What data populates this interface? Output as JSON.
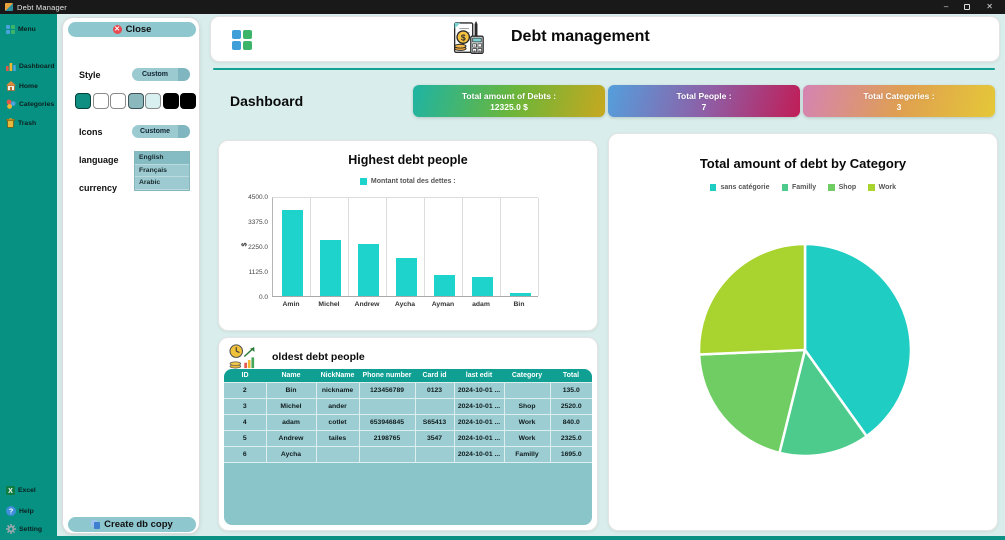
{
  "window": {
    "title": "Debt Manager",
    "controls": {
      "minimize": "–",
      "close": "✕"
    }
  },
  "sidebar": {
    "items": [
      {
        "label": "Menu",
        "icon": "grid-icon"
      },
      {
        "label": "Dashboard",
        "icon": "dashboard-icon"
      },
      {
        "label": "Home",
        "icon": "home-icon"
      },
      {
        "label": "Categories",
        "icon": "categories-icon"
      },
      {
        "label": "Trash",
        "icon": "trash-icon"
      }
    ],
    "footer_items": [
      {
        "label": "Excel",
        "icon": "excel-icon"
      },
      {
        "label": "Help",
        "icon": "help-icon"
      },
      {
        "label": "Setting",
        "icon": "gear-icon"
      }
    ]
  },
  "settings_panel": {
    "close_label": "Close",
    "style_label": "Style",
    "style_value": "Custom",
    "swatches": [
      "#0e8f82",
      "#ffffff",
      "#ffffff",
      "#8ab8bc",
      "#d8f0f0",
      "#000000",
      "#000000"
    ],
    "icons_label": "Icons",
    "icons_value": "Custome",
    "language_label": "language",
    "language_options": [
      "English",
      "Français",
      "Arabic"
    ],
    "language_selected": "English",
    "currency_label": "currency",
    "create_db_label": "Create db copy"
  },
  "header": {
    "title": "Debt management"
  },
  "dashboard": {
    "heading": "Dashboard",
    "cards": [
      {
        "label": "Total amount of Debts :",
        "value": "12325.0 $",
        "gradient": [
          "#1eb4a4",
          "#6ab63a",
          "#c7a81f"
        ]
      },
      {
        "label": "Total People :",
        "value": "7",
        "gradient": [
          "#549fdc",
          "#8f5ea6",
          "#c01d56"
        ]
      },
      {
        "label": "Total Categories :",
        "value": "3",
        "gradient": [
          "#d583b3",
          "#dfa050",
          "#e5c838"
        ]
      }
    ]
  },
  "chart_data": [
    {
      "type": "bar",
      "title": "Highest debt people",
      "legend": [
        "Montant total des dettes :"
      ],
      "categories": [
        "Amin",
        "Michel",
        "Andrew",
        "Aycha",
        "Ayman",
        "adam",
        "Bin"
      ],
      "values": [
        3870,
        2520,
        2325,
        1695,
        940,
        840,
        135
      ],
      "ylabel": "$",
      "yticks": [
        0,
        1125,
        2250,
        3375,
        4500
      ],
      "ylim": [
        0,
        4500
      ],
      "bar_color": "#1dd3cb",
      "grid": "vertical"
    },
    {
      "type": "pie",
      "title": "Total amount of debt by Category",
      "labels": [
        "sans catégorie",
        "Familly",
        "Shop",
        "Work"
      ],
      "values": [
        4945,
        1695,
        2520,
        3165
      ],
      "colors": [
        "#1fcdc3",
        "#4ccb8c",
        "#6fcd64",
        "#a9d32f"
      ],
      "start_angle_deg": 0,
      "direction": "clockwise",
      "legend_position": "top"
    }
  ],
  "table": {
    "title": "oldest debt people",
    "columns": [
      "ID",
      "Name",
      "NickName",
      "Phone number",
      "Card id",
      "last edit",
      "Category",
      "Total"
    ],
    "rows": [
      [
        "2",
        "Bin",
        "nickname",
        "123456789",
        "0123",
        "2024-10-01 ...",
        "",
        "135.0"
      ],
      [
        "3",
        "Michel",
        "ander",
        "",
        "",
        "2024-10-01 ...",
        "Shop",
        "2520.0"
      ],
      [
        "4",
        "adam",
        "cotlet",
        "653946845",
        "S65413",
        "2024-10-01 ...",
        "Work",
        "840.0"
      ],
      [
        "5",
        "Andrew",
        "tailes",
        "2198765",
        "3547",
        "2024-10-01 ...",
        "Work",
        "2325.0"
      ],
      [
        "6",
        "Aycha",
        "",
        "",
        "",
        "2024-10-01 ...",
        "Familly",
        "1695.0"
      ]
    ]
  }
}
